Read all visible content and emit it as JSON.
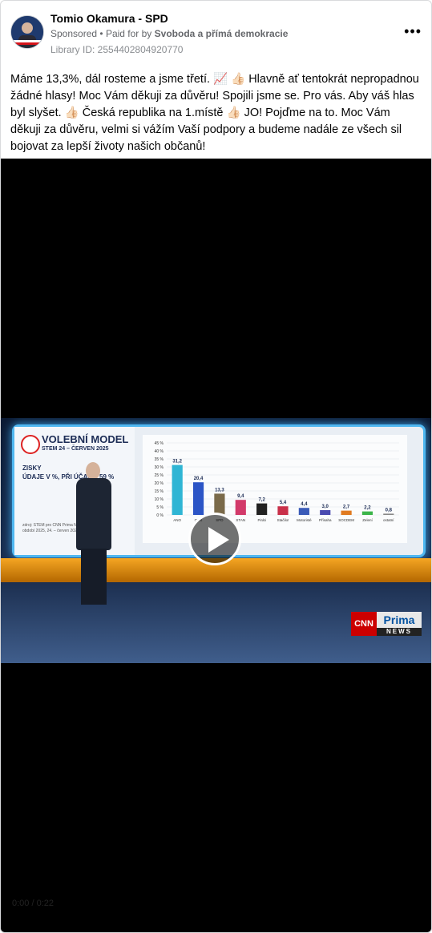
{
  "post": {
    "page_name": "Tomio Okamura - SPD",
    "sponsored": "Sponsored",
    "paid_for_prefix": "Paid for by",
    "paid_for_by": "Svoboda a přímá demokracie",
    "library_id": "Library ID: 2554402804920770",
    "more_icon": "more-options-icon",
    "text": "Máme 13,3%, dál rosteme a jsme třetí. 📈 👍🏻 Hlavně ať tentokrát nepropadnou žádné hlasy! Moc Vám děkuji za důvěru! Spojili jsme se. Pro vás. Aby váš hlas byl slyšet. 👍🏻 Česká republika na 1.místě 👍🏻 JO! Pojďme na to. Moc Vám děkuji za důvěru, velmi si vážím Vaší podpory a budeme nadále ze všech sil bojovat za lepší životy našich občanů!"
  },
  "video": {
    "overlay": {
      "title": "VOLEBNÍ MODEL",
      "subtitle": "STEM 24 – ČERVEN 2025",
      "zisky_line1": "ZISKY",
      "zisky_line2": "ÚDAJE V %, PŘI ÚČASTI 59 %",
      "source_line1": "zdroj: STEM pro CNN Prima NEWS",
      "source_line2": "období 2025, 24. – červen 2025"
    },
    "brand": {
      "cnn": "CNN",
      "prima": "Prima",
      "news": "NEWS"
    },
    "time": "0:00 / 0:22"
  },
  "chart_data": {
    "type": "bar",
    "title": "VOLEBNÍ MODEL",
    "categories": [
      "ANO",
      "ODS",
      "SPD",
      "STAN",
      "Piráti",
      "Stačilo!",
      "Motoristé",
      "Přísaha",
      "SOCDEM",
      "Zelení",
      "ostatní"
    ],
    "values": [
      31.2,
      20.4,
      13.3,
      9.4,
      7.2,
      5.4,
      4.4,
      3.0,
      2.7,
      2.2,
      0.8
    ],
    "value_labels": [
      "31,2",
      "20,4",
      "13,3",
      "9,4",
      "7,2",
      "5,4",
      "4,4",
      "3,0",
      "2,7",
      "2,2",
      "0,8"
    ],
    "colors": [
      "#2fb5d4",
      "#2c55c6",
      "#7a6a4a",
      "#d23a6a",
      "#222222",
      "#c9304a",
      "#3a5bb8",
      "#4a4ab0",
      "#e07a20",
      "#3cb54a",
      "#888888"
    ],
    "y_ticks": [
      "45 %",
      "40 %",
      "35 %",
      "30 %",
      "25 %",
      "20 %",
      "15 %",
      "10 %",
      "5 %",
      "0 %"
    ],
    "ylim": [
      0,
      45
    ],
    "xlabel": "",
    "ylabel": ""
  }
}
